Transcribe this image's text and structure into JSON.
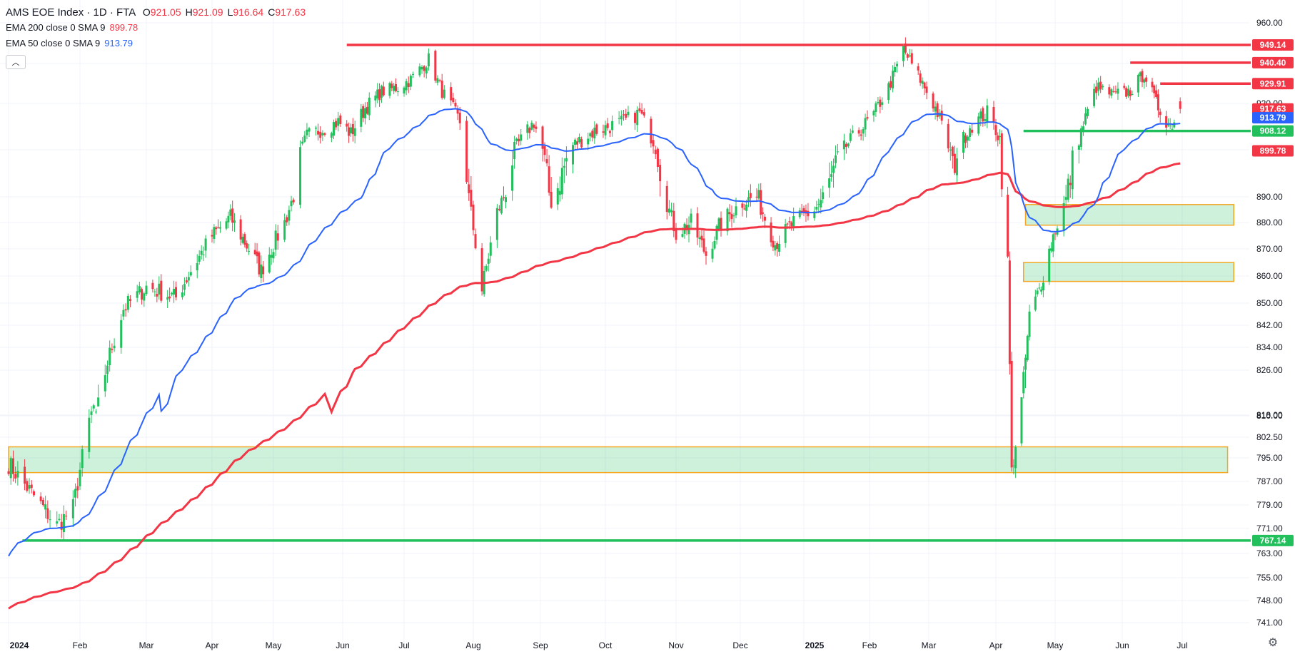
{
  "header": {
    "title": "AMS EOE Index · 1D · FTA",
    "ohlc": [
      {
        "k": "O",
        "v": "921.05"
      },
      {
        "k": "H",
        "v": "921.09"
      },
      {
        "k": "L",
        "v": "916.64"
      },
      {
        "k": "C",
        "v": "917.63"
      }
    ],
    "indicators": [
      {
        "label": "EMA 200 close 0 SMA 9",
        "value": "899.78",
        "color": "#f23645"
      },
      {
        "label": "EMA 50 close 0 SMA 9",
        "value": "913.79",
        "color": "#2962ff"
      }
    ],
    "collapse_icon": "chevron-up-icon"
  },
  "chart_data": {
    "type": "candlestick",
    "x_range": [
      "2024-01-01",
      "2025-08-06"
    ],
    "y_ticks": [
      "960.00",
      "940.00",
      "920.00",
      "900.00",
      "890.00",
      "880.00",
      "870.00",
      "860.00",
      "850.00",
      "842.00",
      "834.00",
      "826.00",
      "818.00",
      "810.00",
      "802.50",
      "795.00",
      "787.00",
      "779.00",
      "771.00",
      "763.00",
      "755.00",
      "748.00",
      "741.00"
    ],
    "x_ticks": [
      {
        "label": "2024",
        "date": "2024-01-01",
        "bold": true
      },
      {
        "label": "Feb",
        "date": "2024-02-01"
      },
      {
        "label": "Mar",
        "date": "2024-03-01"
      },
      {
        "label": "Apr",
        "date": "2024-04-01"
      },
      {
        "label": "May",
        "date": "2024-05-01"
      },
      {
        "label": "Jun",
        "date": "2024-06-01"
      },
      {
        "label": "Jul",
        "date": "2024-07-01"
      },
      {
        "label": "Aug",
        "date": "2024-08-01"
      },
      {
        "label": "Sep",
        "date": "2024-09-01"
      },
      {
        "label": "Oct",
        "date": "2024-10-01"
      },
      {
        "label": "Nov",
        "date": "2024-11-01"
      },
      {
        "label": "Dec",
        "date": "2024-12-01"
      },
      {
        "label": "2025",
        "date": "2025-01-01",
        "bold": true
      },
      {
        "label": "Feb",
        "date": "2025-02-01"
      },
      {
        "label": "Mar",
        "date": "2025-03-01"
      },
      {
        "label": "Apr",
        "date": "2025-04-01"
      },
      {
        "label": "May",
        "date": "2025-05-01"
      },
      {
        "label": "Jun",
        "date": "2025-06-01"
      },
      {
        "label": "Jul",
        "date": "2025-07-01"
      }
    ],
    "price_anchors": [
      [
        "2024-01-01",
        793
      ],
      [
        "2024-01-12",
        782
      ],
      [
        "2024-01-22",
        772
      ],
      [
        "2024-01-29",
        778
      ],
      [
        "2024-02-05",
        808
      ],
      [
        "2024-02-12",
        826
      ],
      [
        "2024-02-20",
        848
      ],
      [
        "2024-03-01",
        856
      ],
      [
        "2024-03-15",
        852
      ],
      [
        "2024-03-22",
        862
      ],
      [
        "2024-04-01",
        875
      ],
      [
        "2024-04-10",
        882
      ],
      [
        "2024-04-19",
        870
      ],
      [
        "2024-04-25",
        862
      ],
      [
        "2024-05-06",
        880
      ],
      [
        "2024-05-16",
        906
      ],
      [
        "2024-05-30",
        912
      ],
      [
        "2024-06-05",
        907
      ],
      [
        "2024-06-12",
        918
      ],
      [
        "2024-06-20",
        926
      ],
      [
        "2024-06-28",
        928
      ],
      [
        "2024-07-04",
        932
      ],
      [
        "2024-07-12",
        942
      ],
      [
        "2024-07-18",
        926
      ],
      [
        "2024-07-26",
        912
      ],
      [
        "2024-08-05",
        855
      ],
      [
        "2024-08-12",
        884
      ],
      [
        "2024-08-20",
        900
      ],
      [
        "2024-08-29",
        912
      ],
      [
        "2024-09-06",
        888
      ],
      [
        "2024-09-16",
        902
      ],
      [
        "2024-09-26",
        908
      ],
      [
        "2024-10-09",
        912
      ],
      [
        "2024-10-16",
        916
      ],
      [
        "2024-10-23",
        902
      ],
      [
        "2024-11-01",
        876
      ],
      [
        "2024-11-08",
        880
      ],
      [
        "2024-11-15",
        868
      ],
      [
        "2024-11-22",
        880
      ],
      [
        "2024-12-02",
        888
      ],
      [
        "2024-12-09",
        890
      ],
      [
        "2024-12-18",
        872
      ],
      [
        "2024-12-27",
        880
      ],
      [
        "2025-01-06",
        885
      ],
      [
        "2025-01-15",
        895
      ],
      [
        "2025-01-24",
        905
      ],
      [
        "2025-02-03",
        915
      ],
      [
        "2025-02-10",
        928
      ],
      [
        "2025-02-17",
        947
      ],
      [
        "2025-02-25",
        932
      ],
      [
        "2025-03-05",
        916
      ],
      [
        "2025-03-12",
        896
      ],
      [
        "2025-03-20",
        910
      ],
      [
        "2025-03-28",
        916
      ],
      [
        "2025-04-03",
        905
      ],
      [
        "2025-04-07",
        865
      ],
      [
        "2025-04-09",
        790
      ],
      [
        "2025-04-14",
        815
      ],
      [
        "2025-04-18",
        845
      ],
      [
        "2025-04-23",
        855
      ],
      [
        "2025-04-30",
        875
      ],
      [
        "2025-05-06",
        889
      ],
      [
        "2025-05-12",
        905
      ],
      [
        "2025-05-20",
        928
      ],
      [
        "2025-05-28",
        924
      ],
      [
        "2025-06-05",
        926
      ],
      [
        "2025-06-12",
        935
      ],
      [
        "2025-06-18",
        920
      ],
      [
        "2025-06-25",
        910
      ],
      [
        "2025-06-30",
        917.63
      ]
    ],
    "ema200": {
      "start": 745,
      "end": 899.78
    },
    "ema50": {
      "start": 761,
      "end": 913.79
    },
    "horizontal_lines": [
      {
        "value": 949.14,
        "label": "949.14",
        "color": "#f23645",
        "from": "2024-06-03",
        "to": "2025-08-06"
      },
      {
        "value": 940.4,
        "label": "940.40",
        "color": "#f23645",
        "from": "2025-06-05",
        "to": "2025-08-06"
      },
      {
        "value": 929.91,
        "label": "929.91",
        "color": "#f23645",
        "from": "2025-06-20",
        "to": "2025-08-06"
      },
      {
        "value": 908.12,
        "label": "908.12",
        "color": "#22c05c",
        "from": "2025-04-15",
        "to": "2025-08-06"
      },
      {
        "value": 767.14,
        "label": "767.14",
        "color": "#22c05c",
        "from": "2024-01-07",
        "to": "2025-08-06"
      }
    ],
    "zones": [
      {
        "from": "2025-04-16",
        "to": "2025-07-26",
        "low": 879,
        "high": 887
      },
      {
        "from": "2025-04-15",
        "to": "2025-07-26",
        "low": 858,
        "high": 865
      },
      {
        "from": "2024-01-01",
        "to": "2025-07-23",
        "low": 790,
        "high": 799
      }
    ],
    "price_labels": [
      {
        "label": "917.63",
        "value": 917.63,
        "color": "#f23645"
      },
      {
        "label": "913.79",
        "value": 913.79,
        "color": "#2962ff"
      },
      {
        "label": "908.12",
        "value": 908.12,
        "color": "#22c05c"
      },
      {
        "label": "899.78",
        "value": 899.78,
        "color": "#f23645"
      }
    ],
    "up_color": "#22c05c",
    "down_color": "#f23645",
    "grid": true
  },
  "footer": {
    "settings_icon": "gear-icon"
  }
}
